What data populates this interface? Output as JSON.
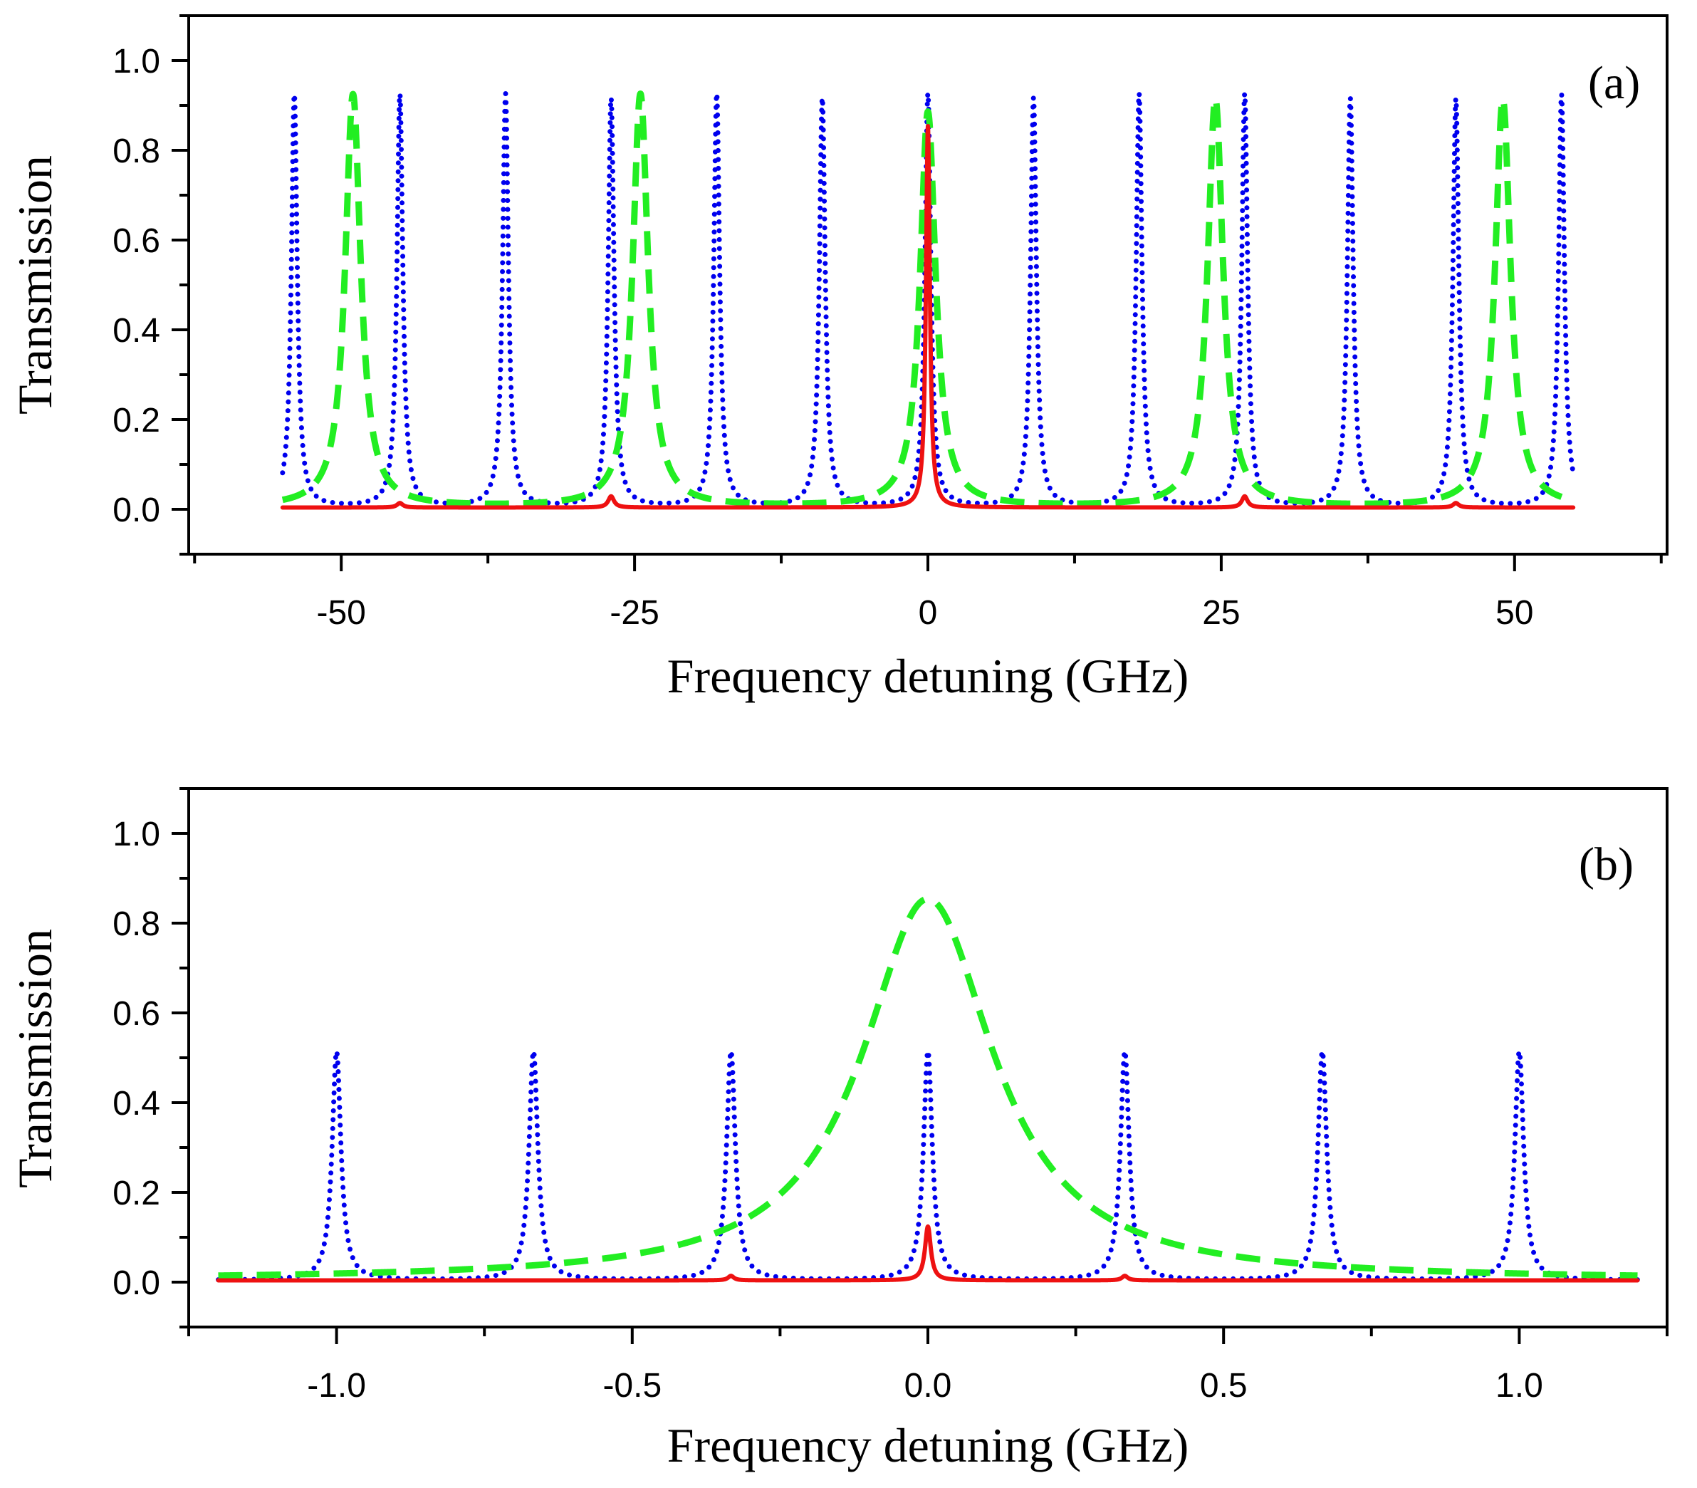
{
  "colors": {
    "axes": "#000000",
    "series_dotted": "#0000ee",
    "series_dashed": "#22ee22",
    "series_solid": "#ee1111"
  },
  "chart_data": [
    {
      "type": "line",
      "panel_label": "(a)",
      "xlabel": "Frequency detuning (GHz)",
      "ylabel": "Transmission",
      "xlim": [
        -63,
        63
      ],
      "ylim": [
        -0.1,
        1.1
      ],
      "x_ticks": [
        -50,
        -25,
        0,
        25,
        50
      ],
      "x_tick_labels": [
        "-50",
        "-25",
        "0",
        "25",
        "50"
      ],
      "x_minor_step": 12.5,
      "y_ticks": [
        0.0,
        0.2,
        0.4,
        0.6,
        0.8,
        1.0
      ],
      "y_tick_labels": [
        "0.0",
        "0.2",
        "0.4",
        "0.6",
        "0.8",
        "1.0"
      ],
      "y_minor_step": 0.1,
      "x_range": [
        -55,
        55
      ],
      "series": [
        {
          "name": "dotted",
          "style": "dotted",
          "color_key": "series_dotted",
          "peaks": [
            {
              "x": -54.0,
              "height": 0.92,
              "width": 0.3
            },
            {
              "x": -45.0,
              "height": 0.92,
              "width": 0.3
            },
            {
              "x": -36.0,
              "height": 0.92,
              "width": 0.3
            },
            {
              "x": -27.0,
              "height": 0.91,
              "width": 0.3
            },
            {
              "x": -18.0,
              "height": 0.92,
              "width": 0.3
            },
            {
              "x": -9.0,
              "height": 0.91,
              "width": 0.3
            },
            {
              "x": 0.0,
              "height": 0.92,
              "width": 0.3
            },
            {
              "x": 9.0,
              "height": 0.91,
              "width": 0.3
            },
            {
              "x": 18.0,
              "height": 0.92,
              "width": 0.3
            },
            {
              "x": 27.0,
              "height": 0.92,
              "width": 0.3
            },
            {
              "x": 36.0,
              "height": 0.91,
              "width": 0.3
            },
            {
              "x": 45.0,
              "height": 0.91,
              "width": 0.3
            },
            {
              "x": 54.0,
              "height": 0.92,
              "width": 0.3
            }
          ]
        },
        {
          "name": "dashed",
          "style": "dashed",
          "color_key": "series_dashed",
          "peaks": [
            {
              "x": -49.0,
              "height": 0.92,
              "width": 0.8
            },
            {
              "x": -24.5,
              "height": 0.92,
              "width": 0.8
            },
            {
              "x": 0.0,
              "height": 0.88,
              "width": 0.8
            },
            {
              "x": 24.5,
              "height": 0.91,
              "width": 0.8
            },
            {
              "x": 49.0,
              "height": 0.91,
              "width": 0.8
            }
          ]
        },
        {
          "name": "solid",
          "style": "solid",
          "color_key": "series_solid",
          "peaks": [
            {
              "x": 0.0,
              "height": 0.85,
              "width": 0.2
            },
            {
              "x": -27.0,
              "height": 0.025,
              "width": 0.3
            },
            {
              "x": 27.0,
              "height": 0.025,
              "width": 0.3
            },
            {
              "x": -45.0,
              "height": 0.01,
              "width": 0.3
            },
            {
              "x": 45.0,
              "height": 0.01,
              "width": 0.3
            }
          ]
        }
      ]
    },
    {
      "type": "line",
      "panel_label": "(b)",
      "xlabel": "Frequency detuning (GHz)",
      "ylabel": "Transmission",
      "xlim": [
        -1.25,
        1.25
      ],
      "ylim": [
        -0.1,
        1.1
      ],
      "x_ticks": [
        -1.0,
        -0.5,
        0.0,
        0.5,
        1.0
      ],
      "x_tick_labels": [
        "-1.0",
        "-0.5",
        "0.0",
        "0.5",
        "1.0"
      ],
      "x_minor_step": 0.25,
      "y_ticks": [
        0.0,
        0.2,
        0.4,
        0.6,
        0.8,
        1.0
      ],
      "y_tick_labels": [
        "0.0",
        "0.2",
        "0.4",
        "0.6",
        "0.8",
        "1.0"
      ],
      "y_minor_step": 0.1,
      "x_range": [
        -1.2,
        1.2
      ],
      "series": [
        {
          "name": "dotted",
          "style": "dotted",
          "color_key": "series_dotted",
          "peaks": [
            {
              "x": -1.0,
              "height": 0.51,
              "width": 0.009
            },
            {
              "x": -0.667,
              "height": 0.51,
              "width": 0.009
            },
            {
              "x": -0.333,
              "height": 0.51,
              "width": 0.009
            },
            {
              "x": 0.0,
              "height": 0.51,
              "width": 0.009
            },
            {
              "x": 0.333,
              "height": 0.51,
              "width": 0.009
            },
            {
              "x": 0.667,
              "height": 0.51,
              "width": 0.009
            },
            {
              "x": 1.0,
              "height": 0.51,
              "width": 0.009
            }
          ]
        },
        {
          "name": "dashed",
          "style": "dashed",
          "color_key": "series_dashed",
          "peaks": [
            {
              "x": 0.0,
              "height": 0.85,
              "width": 0.135
            }
          ]
        },
        {
          "name": "solid",
          "style": "solid",
          "color_key": "series_solid",
          "peaks": [
            {
              "x": 0.0,
              "height": 0.12,
              "width": 0.006
            },
            {
              "x": -0.333,
              "height": 0.01,
              "width": 0.006
            },
            {
              "x": 0.333,
              "height": 0.01,
              "width": 0.006
            }
          ]
        }
      ]
    }
  ]
}
